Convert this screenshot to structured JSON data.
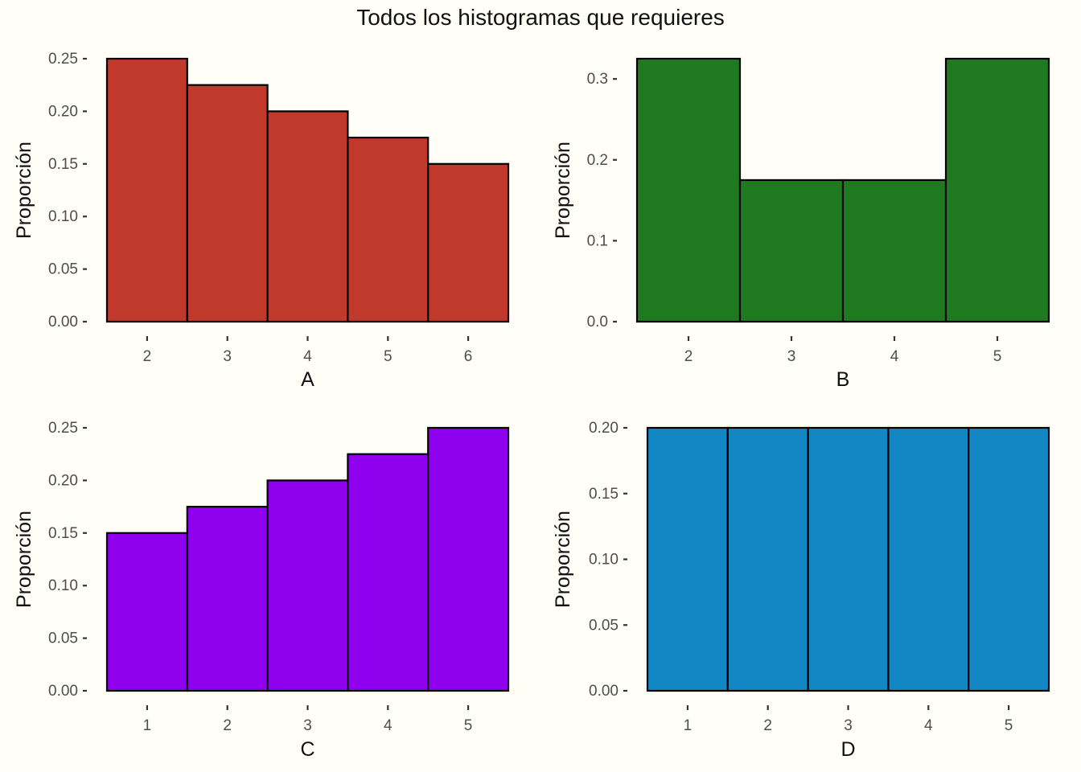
{
  "title": "Todos los histogramas que requieres",
  "chart_data": [
    {
      "type": "bar",
      "xlabel": "A",
      "ylabel": "Proporción",
      "categories": [
        "2",
        "3",
        "4",
        "5",
        "6"
      ],
      "values": [
        0.25,
        0.225,
        0.2,
        0.175,
        0.15
      ],
      "ylim": [
        0,
        0.25
      ],
      "yticks": [
        "0.00",
        "0.05",
        "0.10",
        "0.15",
        "0.20",
        "0.25"
      ],
      "color": "#c0392b",
      "grid": false
    },
    {
      "type": "bar",
      "xlabel": "B",
      "ylabel": "Proporción",
      "categories": [
        "2",
        "3",
        "4",
        "5"
      ],
      "values": [
        0.325,
        0.175,
        0.175,
        0.325
      ],
      "ylim": [
        0,
        0.325
      ],
      "yticks": [
        "0.0",
        "0.1",
        "0.2",
        "0.3"
      ],
      "color": "#1f7a1f",
      "grid": false
    },
    {
      "type": "bar",
      "xlabel": "C",
      "ylabel": "Proporción",
      "categories": [
        "1",
        "2",
        "3",
        "4",
        "5"
      ],
      "values": [
        0.15,
        0.175,
        0.2,
        0.225,
        0.25
      ],
      "ylim": [
        0,
        0.25
      ],
      "yticks": [
        "0.00",
        "0.05",
        "0.10",
        "0.15",
        "0.20",
        "0.25"
      ],
      "color": "#8e00ee",
      "grid": false
    },
    {
      "type": "bar",
      "xlabel": "D",
      "ylabel": "Proporción",
      "categories": [
        "1",
        "2",
        "3",
        "4",
        "5"
      ],
      "values": [
        0.2,
        0.2,
        0.2,
        0.2,
        0.2
      ],
      "ylim": [
        0,
        0.2
      ],
      "yticks": [
        "0.00",
        "0.05",
        "0.10",
        "0.15",
        "0.20"
      ],
      "color": "#1287c4",
      "grid": false
    }
  ]
}
